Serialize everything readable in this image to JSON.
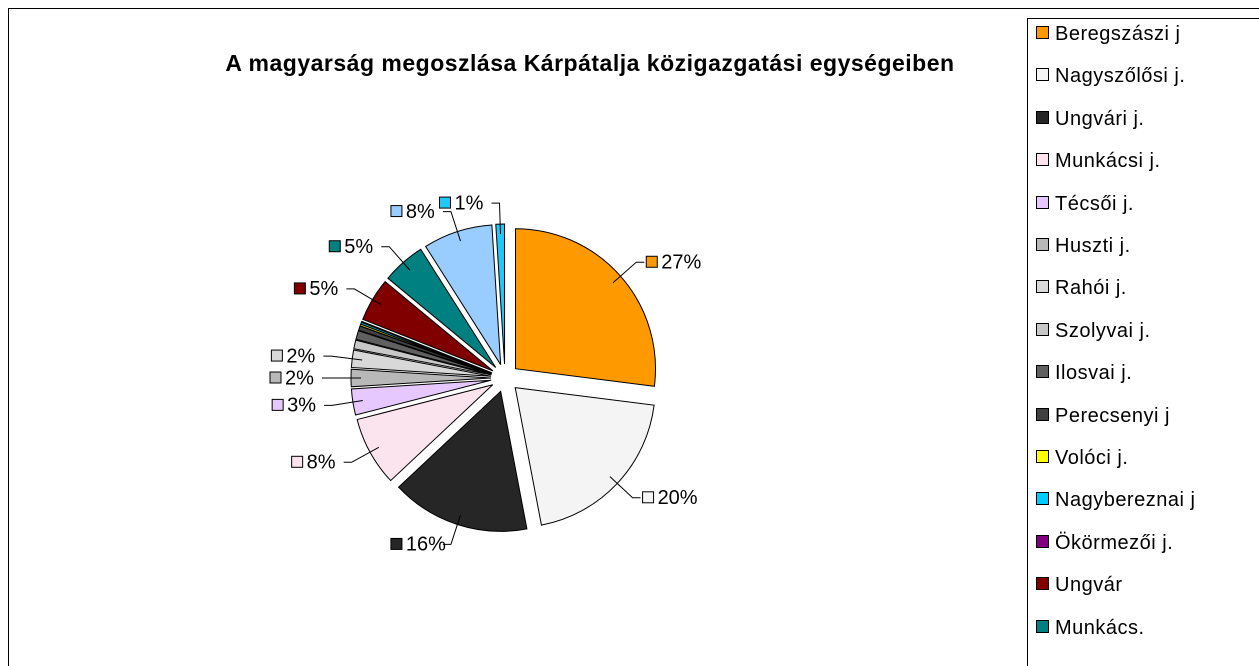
{
  "chart_data": {
    "type": "pie",
    "title": "A magyarság megoszlása Kárpátalja közigazgatási egységeiben",
    "categories": [
      "Beregszászi j",
      "Nagyszőlősi j.",
      "Ungvári j.",
      "Munkácsi j.",
      "Técsői j.",
      "Huszti j.",
      "Rahói j.",
      "Szolyvai j.",
      "Ilosvai j.",
      "Perecsenyi j",
      "Volóci j.",
      "Nagybereznai j",
      "Ökörmezői j.",
      "Ungvár",
      "Munkács.",
      null,
      null
    ],
    "values": [
      27,
      20,
      16,
      8,
      3,
      2,
      2,
      1,
      1,
      0.5,
      0.2,
      0.2,
      0.1,
      5,
      5,
      8,
      1
    ],
    "value_labels": [
      "27%",
      "20%",
      "16%",
      "8%",
      "3%",
      "2%",
      "2%",
      null,
      null,
      null,
      null,
      null,
      null,
      "5%",
      "5%",
      "8%",
      "1%"
    ],
    "colors": [
      "#ff9900",
      "#f4f4f4",
      "#262626",
      "#fbe4ee",
      "#e6c8ff",
      "#b8b8b8",
      "#d8d8d8",
      "#c8c8c8",
      "#606060",
      "#404040",
      "#ffff00",
      "#00ccff",
      "#800080",
      "#800000",
      "#008080",
      "#99ccff",
      "#1fc8f8"
    ]
  }
}
